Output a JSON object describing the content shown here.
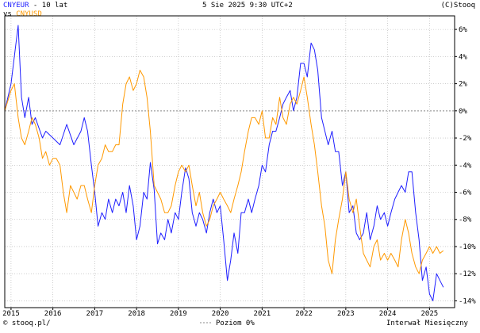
{
  "header": {
    "series1_name": "CNYEUR",
    "title_suffix": " - 10 lat",
    "vs_label": "vs ",
    "series2_name": "CNYUSD",
    "datetime": "5 Sie 2025 9:30 UTC+2",
    "copyright": "(C)Stooq"
  },
  "footer": {
    "source": "© stooq.pl/",
    "reference": "Poziom 0%",
    "interval": "Interwał Miesięczny"
  },
  "colors": {
    "series1": "#1f1fff",
    "series2": "#ff9900",
    "grid": "#b0b0b0",
    "zero": "#888888"
  },
  "chart_data": {
    "type": "line",
    "x_unit": "year",
    "xlim": [
      2014.85,
      2025.6
    ],
    "ylim": [
      -14.5,
      7.0
    ],
    "yticks": [
      6,
      4,
      2,
      0,
      -2,
      -4,
      -6,
      -8,
      -10,
      -12,
      -14
    ],
    "ytick_labels": [
      "6%",
      "4%",
      "2%",
      "0%",
      "-2%",
      "-4%",
      "-6%",
      "-8%",
      "-10%",
      "-12%",
      "-14%"
    ],
    "xticks": [
      2015,
      2016,
      2017,
      2018,
      2019,
      2020,
      2021,
      2022,
      2023,
      2024,
      2025
    ],
    "xtick_labels": [
      "2015",
      "2016",
      "2017",
      "2018",
      "2019",
      "2020",
      "2021",
      "2022",
      "2023",
      "2024",
      "2025"
    ],
    "reference_line": 0,
    "grid": true,
    "series": [
      {
        "name": "CNYEUR",
        "color": "#1f1fff",
        "points": [
          [
            2014.85,
            0.0
          ],
          [
            2015.0,
            2.0
          ],
          [
            2015.17,
            6.3
          ],
          [
            2015.25,
            1.0
          ],
          [
            2015.33,
            -0.5
          ],
          [
            2015.42,
            1.0
          ],
          [
            2015.5,
            -1.0
          ],
          [
            2015.58,
            -0.5
          ],
          [
            2015.75,
            -2.0
          ],
          [
            2015.83,
            -1.5
          ],
          [
            2016.0,
            -2.0
          ],
          [
            2016.17,
            -2.5
          ],
          [
            2016.33,
            -1.0
          ],
          [
            2016.5,
            -2.5
          ],
          [
            2016.67,
            -1.5
          ],
          [
            2016.75,
            -0.5
          ],
          [
            2016.83,
            -1.5
          ],
          [
            2016.92,
            -4.0
          ],
          [
            2017.0,
            -6.0
          ],
          [
            2017.08,
            -8.5
          ],
          [
            2017.17,
            -7.5
          ],
          [
            2017.25,
            -8.0
          ],
          [
            2017.33,
            -6.5
          ],
          [
            2017.42,
            -7.5
          ],
          [
            2017.5,
            -6.5
          ],
          [
            2017.58,
            -7.0
          ],
          [
            2017.67,
            -6.0
          ],
          [
            2017.75,
            -7.5
          ],
          [
            2017.83,
            -5.5
          ],
          [
            2017.92,
            -7.0
          ],
          [
            2018.0,
            -9.5
          ],
          [
            2018.08,
            -8.5
          ],
          [
            2018.17,
            -6.0
          ],
          [
            2018.25,
            -6.5
          ],
          [
            2018.33,
            -3.8
          ],
          [
            2018.42,
            -5.8
          ],
          [
            2018.5,
            -9.8
          ],
          [
            2018.58,
            -9.0
          ],
          [
            2018.67,
            -9.5
          ],
          [
            2018.75,
            -8.0
          ],
          [
            2018.83,
            -9.0
          ],
          [
            2018.92,
            -7.5
          ],
          [
            2019.0,
            -8.0
          ],
          [
            2019.08,
            -6.0
          ],
          [
            2019.17,
            -4.2
          ],
          [
            2019.25,
            -5.0
          ],
          [
            2019.33,
            -7.5
          ],
          [
            2019.42,
            -8.5
          ],
          [
            2019.5,
            -7.5
          ],
          [
            2019.58,
            -8.0
          ],
          [
            2019.67,
            -9.0
          ],
          [
            2019.75,
            -7.5
          ],
          [
            2019.83,
            -6.5
          ],
          [
            2019.92,
            -7.5
          ],
          [
            2020.0,
            -7.0
          ],
          [
            2020.08,
            -9.5
          ],
          [
            2020.17,
            -12.5
          ],
          [
            2020.25,
            -11.0
          ],
          [
            2020.33,
            -9.0
          ],
          [
            2020.42,
            -10.5
          ],
          [
            2020.5,
            -7.5
          ],
          [
            2020.58,
            -7.5
          ],
          [
            2020.67,
            -6.5
          ],
          [
            2020.75,
            -7.5
          ],
          [
            2020.83,
            -6.5
          ],
          [
            2020.92,
            -5.5
          ],
          [
            2021.0,
            -4.0
          ],
          [
            2021.08,
            -4.5
          ],
          [
            2021.17,
            -2.5
          ],
          [
            2021.25,
            -1.5
          ],
          [
            2021.33,
            -1.5
          ],
          [
            2021.42,
            -0.5
          ],
          [
            2021.5,
            0.5
          ],
          [
            2021.58,
            1.0
          ],
          [
            2021.67,
            1.5
          ],
          [
            2021.75,
            0.0
          ],
          [
            2021.83,
            1.0
          ],
          [
            2021.92,
            3.5
          ],
          [
            2022.0,
            3.5
          ],
          [
            2022.08,
            2.5
          ],
          [
            2022.17,
            5.0
          ],
          [
            2022.25,
            4.5
          ],
          [
            2022.33,
            3.0
          ],
          [
            2022.42,
            -0.5
          ],
          [
            2022.5,
            -1.5
          ],
          [
            2022.58,
            -2.5
          ],
          [
            2022.67,
            -1.5
          ],
          [
            2022.75,
            -3.0
          ],
          [
            2022.83,
            -3.0
          ],
          [
            2022.92,
            -5.5
          ],
          [
            2023.0,
            -4.5
          ],
          [
            2023.08,
            -7.5
          ],
          [
            2023.17,
            -7.0
          ],
          [
            2023.25,
            -9.0
          ],
          [
            2023.33,
            -9.5
          ],
          [
            2023.42,
            -9.0
          ],
          [
            2023.5,
            -7.5
          ],
          [
            2023.58,
            -9.5
          ],
          [
            2023.67,
            -8.5
          ],
          [
            2023.75,
            -7.0
          ],
          [
            2023.83,
            -8.0
          ],
          [
            2023.92,
            -7.5
          ],
          [
            2024.0,
            -8.5
          ],
          [
            2024.08,
            -7.5
          ],
          [
            2024.17,
            -6.5
          ],
          [
            2024.25,
            -6.0
          ],
          [
            2024.33,
            -5.5
          ],
          [
            2024.42,
            -6.0
          ],
          [
            2024.5,
            -4.5
          ],
          [
            2024.58,
            -4.5
          ],
          [
            2024.67,
            -7.5
          ],
          [
            2024.75,
            -9.5
          ],
          [
            2024.83,
            -12.5
          ],
          [
            2024.92,
            -11.5
          ],
          [
            2025.0,
            -13.5
          ],
          [
            2025.08,
            -14.0
          ],
          [
            2025.17,
            -12.0
          ],
          [
            2025.25,
            -12.5
          ],
          [
            2025.33,
            -13.0
          ]
        ]
      },
      {
        "name": "CNYUSD",
        "color": "#ff9900",
        "points": [
          [
            2014.85,
            0.0
          ],
          [
            2015.0,
            1.5
          ],
          [
            2015.08,
            2.0
          ],
          [
            2015.17,
            -0.5
          ],
          [
            2015.25,
            -2.0
          ],
          [
            2015.33,
            -2.5
          ],
          [
            2015.42,
            -1.5
          ],
          [
            2015.5,
            -0.5
          ],
          [
            2015.58,
            -1.0
          ],
          [
            2015.67,
            -2.0
          ],
          [
            2015.75,
            -3.5
          ],
          [
            2015.83,
            -3.0
          ],
          [
            2015.92,
            -4.0
          ],
          [
            2016.0,
            -3.5
          ],
          [
            2016.08,
            -3.5
          ],
          [
            2016.17,
            -4.0
          ],
          [
            2016.25,
            -6.0
          ],
          [
            2016.33,
            -7.5
          ],
          [
            2016.42,
            -5.5
          ],
          [
            2016.5,
            -6.0
          ],
          [
            2016.58,
            -6.5
          ],
          [
            2016.67,
            -5.5
          ],
          [
            2016.75,
            -5.5
          ],
          [
            2016.83,
            -6.5
          ],
          [
            2016.92,
            -7.5
          ],
          [
            2017.0,
            -5.5
          ],
          [
            2017.08,
            -4.0
          ],
          [
            2017.17,
            -3.5
          ],
          [
            2017.25,
            -2.5
          ],
          [
            2017.33,
            -3.0
          ],
          [
            2017.42,
            -3.0
          ],
          [
            2017.5,
            -2.5
          ],
          [
            2017.58,
            -2.5
          ],
          [
            2017.67,
            0.5
          ],
          [
            2017.75,
            2.0
          ],
          [
            2017.83,
            2.5
          ],
          [
            2017.92,
            1.5
          ],
          [
            2018.0,
            2.0
          ],
          [
            2018.08,
            3.0
          ],
          [
            2018.17,
            2.5
          ],
          [
            2018.25,
            1.0
          ],
          [
            2018.33,
            -1.5
          ],
          [
            2018.42,
            -5.5
          ],
          [
            2018.5,
            -6.0
          ],
          [
            2018.58,
            -6.5
          ],
          [
            2018.67,
            -7.5
          ],
          [
            2018.75,
            -7.5
          ],
          [
            2018.83,
            -7.0
          ],
          [
            2018.92,
            -5.5
          ],
          [
            2019.0,
            -4.5
          ],
          [
            2019.08,
            -4.0
          ],
          [
            2019.17,
            -4.5
          ],
          [
            2019.25,
            -4.0
          ],
          [
            2019.33,
            -5.5
          ],
          [
            2019.42,
            -7.0
          ],
          [
            2019.5,
            -6.0
          ],
          [
            2019.58,
            -7.5
          ],
          [
            2019.67,
            -8.5
          ],
          [
            2019.75,
            -8.0
          ],
          [
            2019.83,
            -7.0
          ],
          [
            2019.92,
            -6.5
          ],
          [
            2020.0,
            -6.0
          ],
          [
            2020.08,
            -6.5
          ],
          [
            2020.17,
            -7.0
          ],
          [
            2020.25,
            -7.5
          ],
          [
            2020.33,
            -6.5
          ],
          [
            2020.42,
            -5.5
          ],
          [
            2020.5,
            -4.5
          ],
          [
            2020.58,
            -3.0
          ],
          [
            2020.67,
            -1.5
          ],
          [
            2020.75,
            -0.5
          ],
          [
            2020.83,
            -0.5
          ],
          [
            2020.92,
            -1.0
          ],
          [
            2021.0,
            0.0
          ],
          [
            2021.08,
            -2.0
          ],
          [
            2021.17,
            -2.0
          ],
          [
            2021.25,
            -0.5
          ],
          [
            2021.33,
            -1.0
          ],
          [
            2021.42,
            1.0
          ],
          [
            2021.5,
            -0.5
          ],
          [
            2021.58,
            -1.0
          ],
          [
            2021.67,
            0.5
          ],
          [
            2021.75,
            1.0
          ],
          [
            2021.83,
            0.5
          ],
          [
            2021.92,
            1.5
          ],
          [
            2022.0,
            2.5
          ],
          [
            2022.08,
            1.0
          ],
          [
            2022.17,
            -1.0
          ],
          [
            2022.25,
            -2.5
          ],
          [
            2022.33,
            -4.5
          ],
          [
            2022.42,
            -7.0
          ],
          [
            2022.5,
            -8.5
          ],
          [
            2022.58,
            -11.0
          ],
          [
            2022.67,
            -12.0
          ],
          [
            2022.75,
            -9.5
          ],
          [
            2022.83,
            -8.0
          ],
          [
            2022.92,
            -6.5
          ],
          [
            2023.0,
            -4.5
          ],
          [
            2023.08,
            -6.5
          ],
          [
            2023.17,
            -7.5
          ],
          [
            2023.25,
            -6.5
          ],
          [
            2023.33,
            -8.5
          ],
          [
            2023.42,
            -10.5
          ],
          [
            2023.5,
            -11.0
          ],
          [
            2023.58,
            -11.5
          ],
          [
            2023.67,
            -10.0
          ],
          [
            2023.75,
            -9.5
          ],
          [
            2023.83,
            -11.0
          ],
          [
            2023.92,
            -10.5
          ],
          [
            2024.0,
            -11.0
          ],
          [
            2024.08,
            -10.5
          ],
          [
            2024.17,
            -11.0
          ],
          [
            2024.25,
            -11.5
          ],
          [
            2024.33,
            -9.5
          ],
          [
            2024.42,
            -8.0
          ],
          [
            2024.5,
            -9.0
          ],
          [
            2024.58,
            -10.5
          ],
          [
            2024.67,
            -11.5
          ],
          [
            2024.75,
            -12.0
          ],
          [
            2024.83,
            -11.0
          ],
          [
            2024.92,
            -10.5
          ],
          [
            2025.0,
            -10.0
          ],
          [
            2025.08,
            -10.5
          ],
          [
            2025.17,
            -10.0
          ],
          [
            2025.25,
            -10.5
          ],
          [
            2025.33,
            -10.3
          ]
        ]
      }
    ]
  }
}
